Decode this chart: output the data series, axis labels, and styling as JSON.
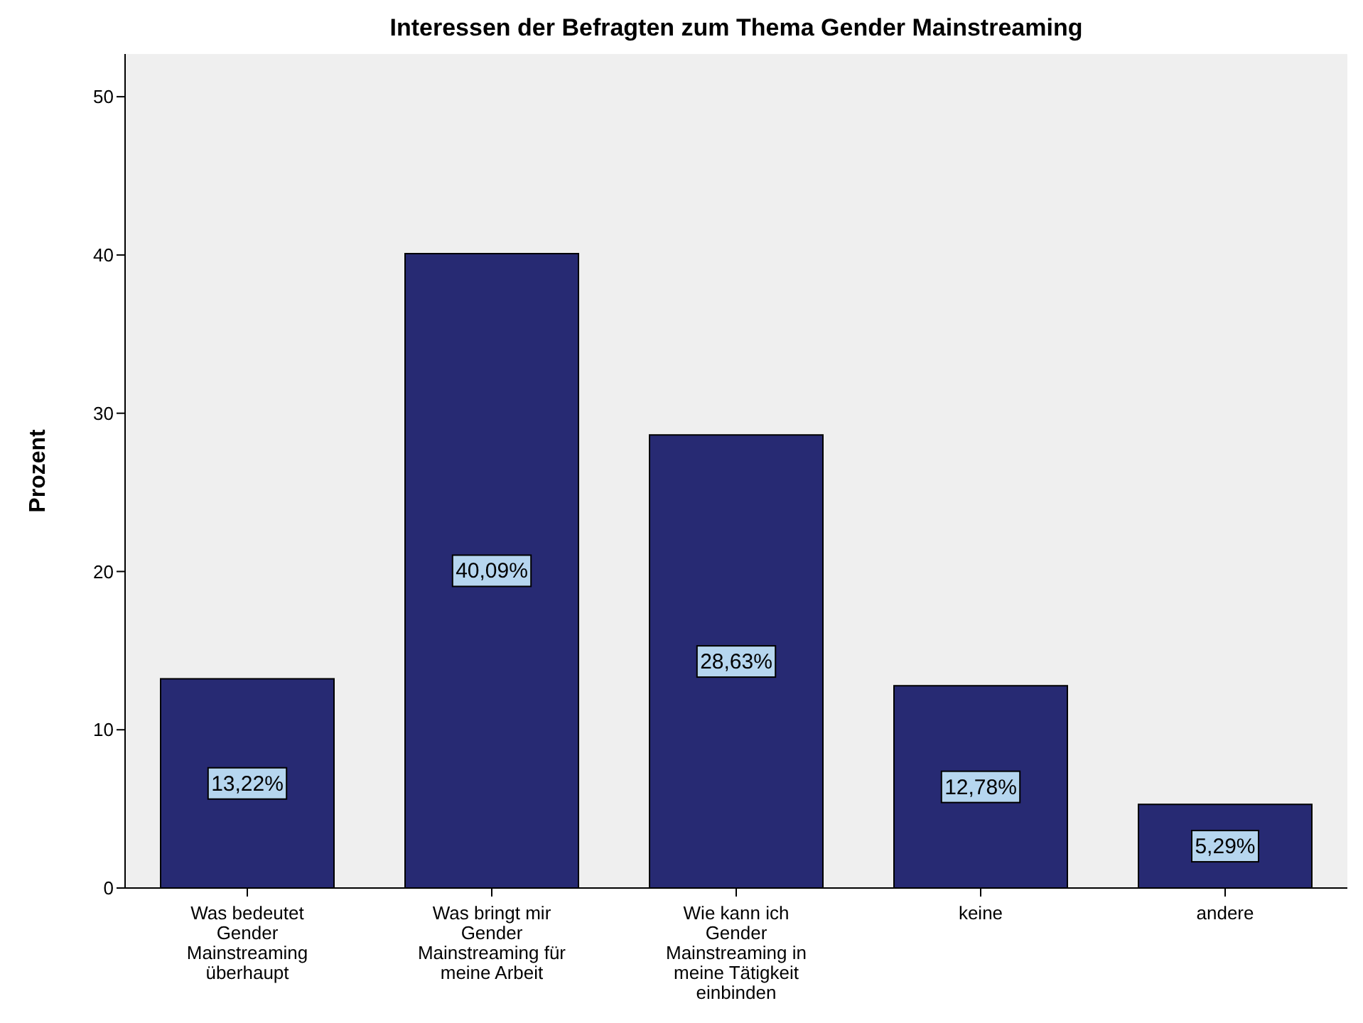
{
  "chart_data": {
    "type": "bar",
    "title": "Interessen der Befragten zum Thema Gender Mainstreaming",
    "ylabel": "Prozent",
    "categories": [
      "Was bedeutet Gender Mainstreaming überhaupt",
      "Was bringt mir Gender Mainstreaming für meine Arbeit",
      "Wie kann ich Gender Mainstreaming in meine Tätigkeit einbinden",
      "keine",
      "andere"
    ],
    "values": [
      13.22,
      40.09,
      28.63,
      12.78,
      5.29
    ],
    "value_labels": [
      "13,22%",
      "40,09%",
      "28,63%",
      "12,78%",
      "5,29%"
    ],
    "color": "#272a73",
    "ylim": [
      0,
      52.7
    ],
    "yticks": [
      0,
      10,
      20,
      30,
      40,
      50
    ],
    "grid": false
  }
}
